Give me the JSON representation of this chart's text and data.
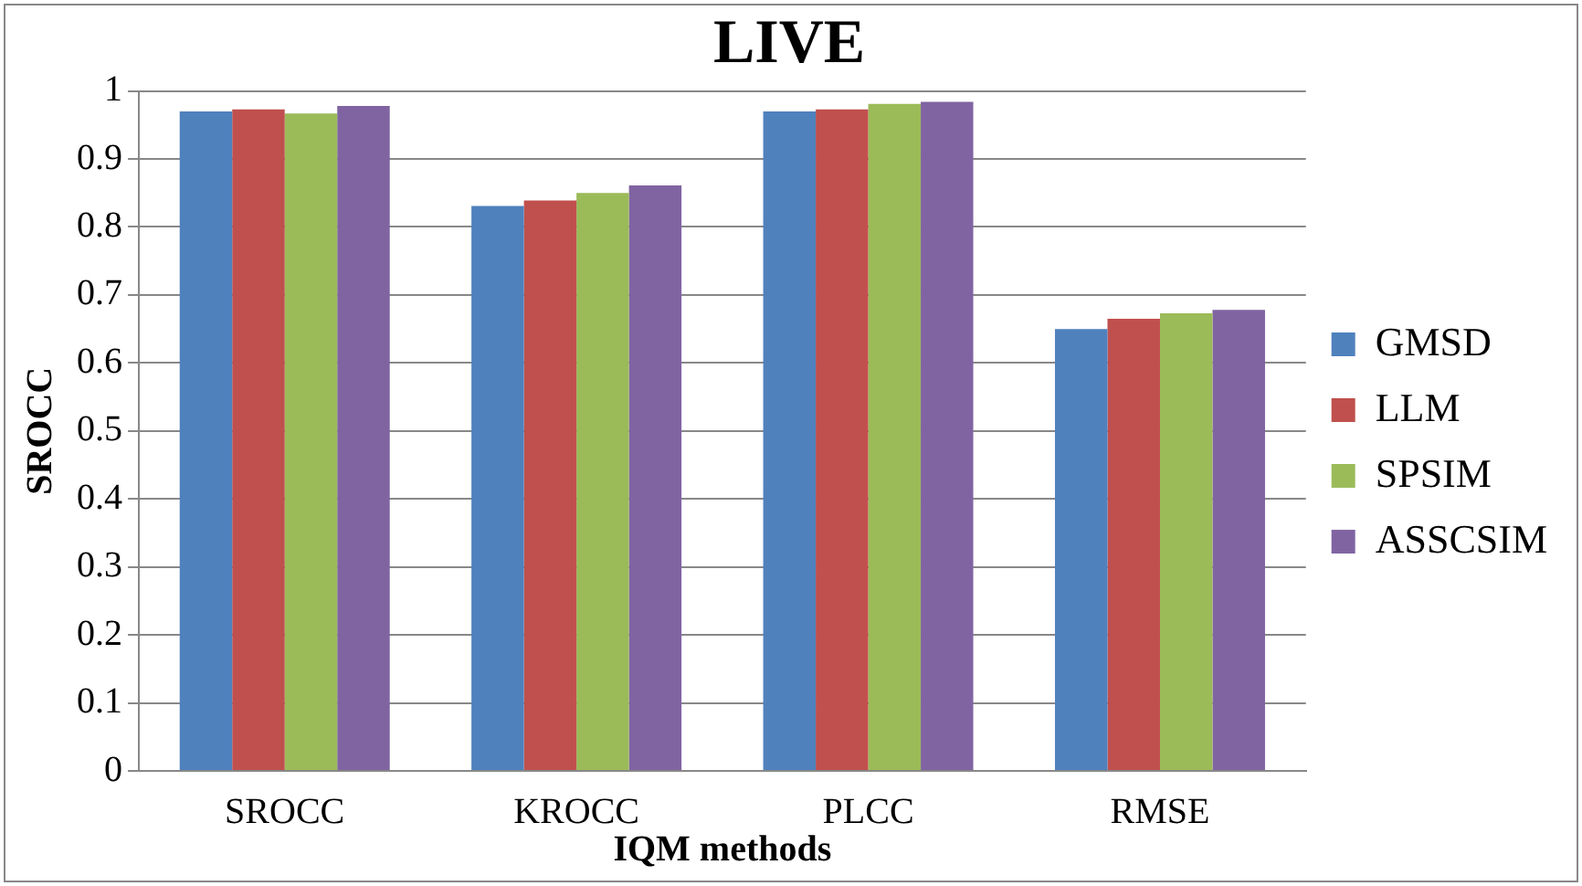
{
  "chart_data": {
    "type": "bar",
    "title": "LIVE",
    "xlabel": "IQM methods",
    "ylabel": "SROCC",
    "categories": [
      "SROCC",
      "KROCC",
      "PLCC",
      "RMSE"
    ],
    "series": [
      {
        "name": "GMSD",
        "color": "#4f81bd",
        "values": [
          0.97,
          0.831,
          0.97,
          0.65
        ]
      },
      {
        "name": "LLM",
        "color": "#c0504d",
        "values": [
          0.973,
          0.839,
          0.973,
          0.665
        ]
      },
      {
        "name": "SPSIM",
        "color": "#9bbb59",
        "values": [
          0.967,
          0.85,
          0.981,
          0.673
        ]
      },
      {
        "name": "ASSCSIM",
        "color": "#8064a2",
        "values": [
          0.978,
          0.861,
          0.984,
          0.678
        ]
      }
    ],
    "ylim": [
      0,
      1
    ],
    "yticks": [
      0,
      0.1,
      0.2,
      0.3,
      0.4,
      0.5,
      0.6,
      0.7,
      0.8,
      0.9,
      1
    ],
    "grid": "y",
    "legend": "right"
  }
}
